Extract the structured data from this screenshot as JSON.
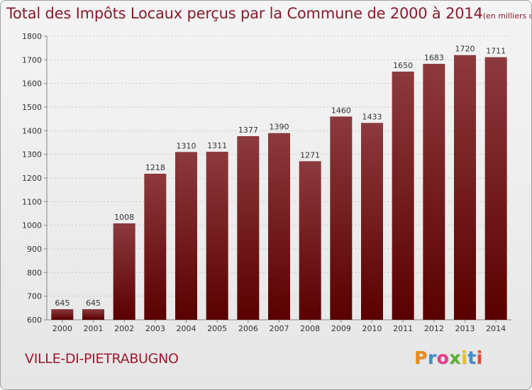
{
  "header": {
    "title": "Total des Impôts Locaux perçus par la Commune de 2000 à 2014",
    "unit": "(en milliers d'€)"
  },
  "footer": {
    "commune": "VILLE-DI-PIETRABUGNO",
    "logo_text": "Proxiti"
  },
  "colors": {
    "title": "#8b1a2b",
    "bar_top": "#8c3a3e",
    "bar_bottom": "#5a0000",
    "logo_letters": [
      "#e88a1a",
      "#3a8fd0",
      "#e83a8a",
      "#5ab030",
      "#e8c020",
      "#3a8fd0",
      "#e84a2a"
    ]
  },
  "chart_data": {
    "type": "bar",
    "title": "Total des Impôts Locaux perçus par la Commune de 2000 à 2014",
    "categories": [
      "2000",
      "2001",
      "2002",
      "2003",
      "2004",
      "2005",
      "2006",
      "2007",
      "2008",
      "2009",
      "2010",
      "2011",
      "2012",
      "2013",
      "2014"
    ],
    "values": [
      645,
      645,
      1008,
      1218,
      1310,
      1311,
      1377,
      1390,
      1271,
      1460,
      1433,
      1650,
      1683,
      1720,
      1711
    ],
    "ylim": [
      600,
      1800
    ],
    "yticks": [
      600,
      700,
      800,
      900,
      1000,
      1100,
      1200,
      1300,
      1400,
      1500,
      1600,
      1700,
      1800
    ],
    "grid": true,
    "xlabel": "",
    "ylabel": ""
  }
}
